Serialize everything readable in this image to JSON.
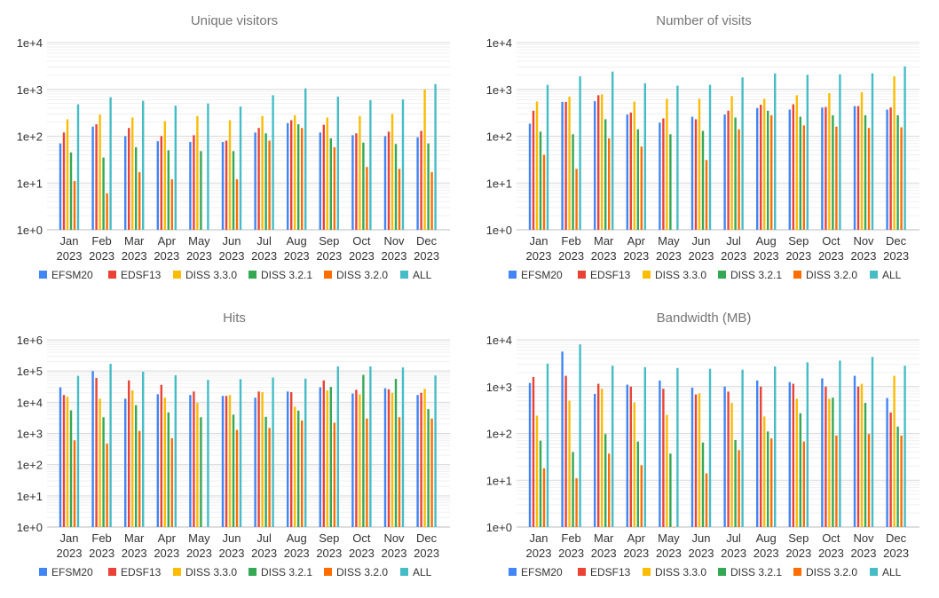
{
  "colors": [
    "#4285F4",
    "#EA4335",
    "#FBBC04",
    "#34A853",
    "#FF6D01",
    "#46BDC6"
  ],
  "chart_data": [
    {
      "type": "bar",
      "title": "Unique visitors",
      "yscale": "log",
      "ylim": [
        1,
        10000
      ],
      "yticks": [
        "1e+0",
        "1e+1",
        "1e+2",
        "1e+3",
        "1e+4"
      ],
      "grid": true,
      "legend": "bottom",
      "categories": [
        "Jan 2023",
        "Feb 2023",
        "Mar 2023",
        "Apr 2023",
        "May 2023",
        "Jun 2023",
        "Jul 2023",
        "Aug 2023",
        "Sep 2023",
        "Oct 2023",
        "Nov 2023",
        "Dec 2023"
      ],
      "series": [
        {
          "name": "EFSM20",
          "values": [
            70,
            160,
            100,
            78,
            75,
            75,
            120,
            190,
            120,
            105,
            100,
            95
          ]
        },
        {
          "name": "EDSF13",
          "values": [
            120,
            180,
            150,
            100,
            105,
            80,
            150,
            220,
            175,
            115,
            125,
            130
          ]
        },
        {
          "name": "DISS 3.3.0",
          "values": [
            230,
            290,
            250,
            210,
            270,
            220,
            270,
            280,
            250,
            270,
            300,
            1000
          ]
        },
        {
          "name": "DISS 3.2.1",
          "values": [
            45,
            35,
            58,
            50,
            48,
            48,
            115,
            180,
            90,
            73,
            68,
            70
          ]
        },
        {
          "name": "DISS 3.2.0",
          "values": [
            11,
            6,
            17,
            12,
            null,
            12,
            80,
            150,
            58,
            22,
            20,
            17
          ]
        },
        {
          "name": "ALL",
          "values": [
            480,
            680,
            570,
            450,
            500,
            430,
            750,
            1050,
            700,
            590,
            610,
            1300
          ]
        }
      ]
    },
    {
      "type": "bar",
      "title": "Number of visits",
      "yscale": "log",
      "ylim": [
        1,
        10000
      ],
      "yticks": [
        "1e+0",
        "1e+1",
        "1e+2",
        "1e+3",
        "1e+4"
      ],
      "grid": true,
      "legend": "bottom",
      "categories": [
        "Jan 2023",
        "Feb 2023",
        "Mar 2023",
        "Apr 2023",
        "May 2023",
        "Jun 2023",
        "Jul 2023",
        "Aug 2023",
        "Sep 2023",
        "Oct 2023",
        "Nov 2023",
        "Dec 2023"
      ],
      "series": [
        {
          "name": "EFSM20",
          "values": [
            185,
            540,
            560,
            290,
            195,
            260,
            290,
            400,
            370,
            410,
            440,
            370
          ]
        },
        {
          "name": "EDSF13",
          "values": [
            350,
            540,
            750,
            320,
            240,
            230,
            350,
            470,
            480,
            420,
            440,
            410
          ]
        },
        {
          "name": "DISS 3.3.0",
          "values": [
            550,
            700,
            780,
            550,
            630,
            630,
            720,
            630,
            750,
            830,
            870,
            1900
          ]
        },
        {
          "name": "DISS 3.2.1",
          "values": [
            125,
            110,
            230,
            140,
            110,
            130,
            250,
            350,
            260,
            280,
            280,
            280
          ]
        },
        {
          "name": "DISS 3.2.0",
          "values": [
            40,
            20,
            90,
            60,
            null,
            31,
            140,
            280,
            170,
            160,
            150,
            155
          ]
        },
        {
          "name": "ALL",
          "values": [
            1250,
            1900,
            2400,
            1350,
            1200,
            1250,
            1800,
            2200,
            2050,
            2100,
            2200,
            3100
          ]
        }
      ]
    },
    {
      "type": "bar",
      "title": "Hits",
      "yscale": "log",
      "ylim": [
        1,
        1000000
      ],
      "yticks": [
        "1e+0",
        "1e+1",
        "1e+2",
        "1e+3",
        "1e+4",
        "1e+5",
        "1e+6"
      ],
      "grid": true,
      "legend": "bottom",
      "categories": [
        "Jan 2023",
        "Feb 2023",
        "Mar 2023",
        "Apr 2023",
        "May 2023",
        "Jun 2023",
        "Jul 2023",
        "Aug 2023",
        "Sep 2023",
        "Oct 2023",
        "Nov 2023",
        "Dec 2023"
      ],
      "series": [
        {
          "name": "EFSM20",
          "values": [
            30000,
            100000,
            13000,
            18000,
            17000,
            16000,
            14000,
            22000,
            30000,
            19000,
            28000,
            17000
          ]
        },
        {
          "name": "EDSF13",
          "values": [
            17000,
            60000,
            50000,
            36000,
            22000,
            16000,
            22000,
            21000,
            50000,
            25000,
            26000,
            20000
          ]
        },
        {
          "name": "DISS 3.3.0",
          "values": [
            15000,
            13000,
            24000,
            14000,
            9500,
            17000,
            21000,
            7200,
            24000,
            18000,
            20000,
            27000
          ]
        },
        {
          "name": "DISS 3.2.1",
          "values": [
            5500,
            3300,
            8000,
            4700,
            3300,
            4000,
            3400,
            5400,
            31000,
            75000,
            56000,
            6000
          ]
        },
        {
          "name": "DISS 3.2.0",
          "values": [
            600,
            470,
            1200,
            700,
            null,
            1300,
            1500,
            2600,
            2200,
            3000,
            3300,
            3000
          ]
        },
        {
          "name": "ALL",
          "values": [
            70000,
            170000,
            95000,
            73000,
            52000,
            55000,
            62000,
            57000,
            140000,
            140000,
            130000,
            72000
          ]
        }
      ]
    },
    {
      "type": "bar",
      "title": "Bandwidth (MB)",
      "yscale": "log",
      "ylim": [
        1,
        10000
      ],
      "yticks": [
        "1e+0",
        "1e+1",
        "1e+2",
        "1e+3",
        "1e+4"
      ],
      "grid": true,
      "legend": "bottom",
      "categories": [
        "Jan 2023",
        "Feb 2023",
        "Mar 2023",
        "Apr 2023",
        "May 2023",
        "Jun 2023",
        "Jul 2023",
        "Aug 2023",
        "Sep 2023",
        "Oct 2023",
        "Nov 2023",
        "Dec 2023"
      ],
      "series": [
        {
          "name": "EFSM20",
          "values": [
            1200,
            5600,
            700,
            1100,
            1350,
            950,
            1000,
            1350,
            1250,
            1500,
            1700,
            570
          ]
        },
        {
          "name": "EDSF13",
          "values": [
            1600,
            1700,
            1150,
            1000,
            900,
            680,
            780,
            1000,
            1150,
            1000,
            1000,
            280
          ]
        },
        {
          "name": "DISS 3.3.0",
          "values": [
            240,
            500,
            900,
            460,
            250,
            720,
            450,
            230,
            550,
            550,
            1150,
            1700
          ]
        },
        {
          "name": "DISS 3.2.1",
          "values": [
            70,
            40,
            97,
            67,
            37,
            64,
            72,
            110,
            270,
            580,
            450,
            140
          ]
        },
        {
          "name": "DISS 3.2.0",
          "values": [
            18,
            11,
            37,
            21,
            1,
            14,
            44,
            78,
            67,
            90,
            97,
            90
          ]
        },
        {
          "name": "ALL",
          "values": [
            3100,
            8000,
            2800,
            2600,
            2500,
            2400,
            2300,
            2700,
            3300,
            3600,
            4300,
            2800
          ]
        }
      ]
    }
  ]
}
